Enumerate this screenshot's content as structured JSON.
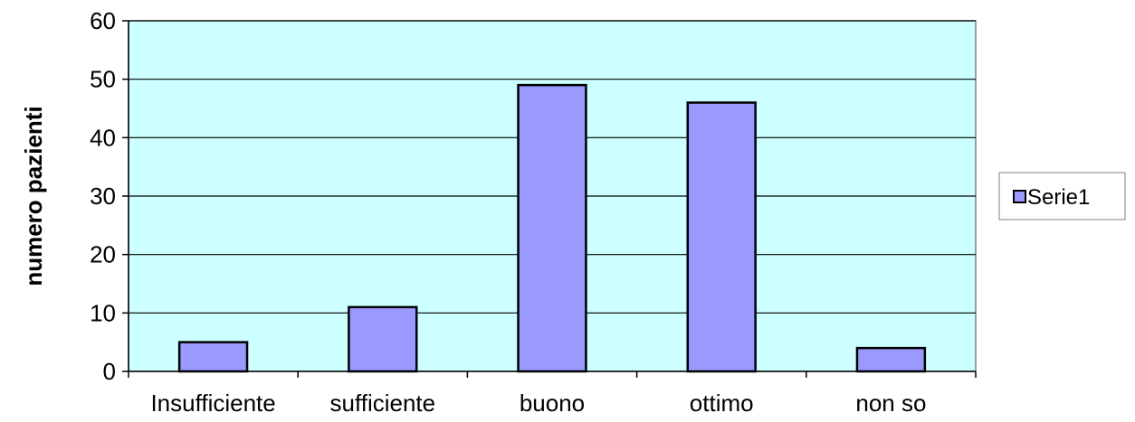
{
  "chart_data": {
    "type": "bar",
    "categories": [
      "Insufficiente",
      "sufficiente",
      "buono",
      "ottimo",
      "non so"
    ],
    "series": [
      {
        "name": "Serie1",
        "values": [
          5,
          11,
          49,
          46,
          4
        ]
      }
    ],
    "ylabel": "numero pazienti",
    "xlabel": "",
    "ylim": [
      0,
      60
    ],
    "yticks": [
      0,
      10,
      20,
      30,
      40,
      50,
      60
    ],
    "grid": true,
    "legend": "right",
    "colors": {
      "bar_fill": "#9999ff",
      "bar_stroke": "#000000",
      "plot_background": "#ccffff",
      "gridline": "#000000"
    }
  }
}
